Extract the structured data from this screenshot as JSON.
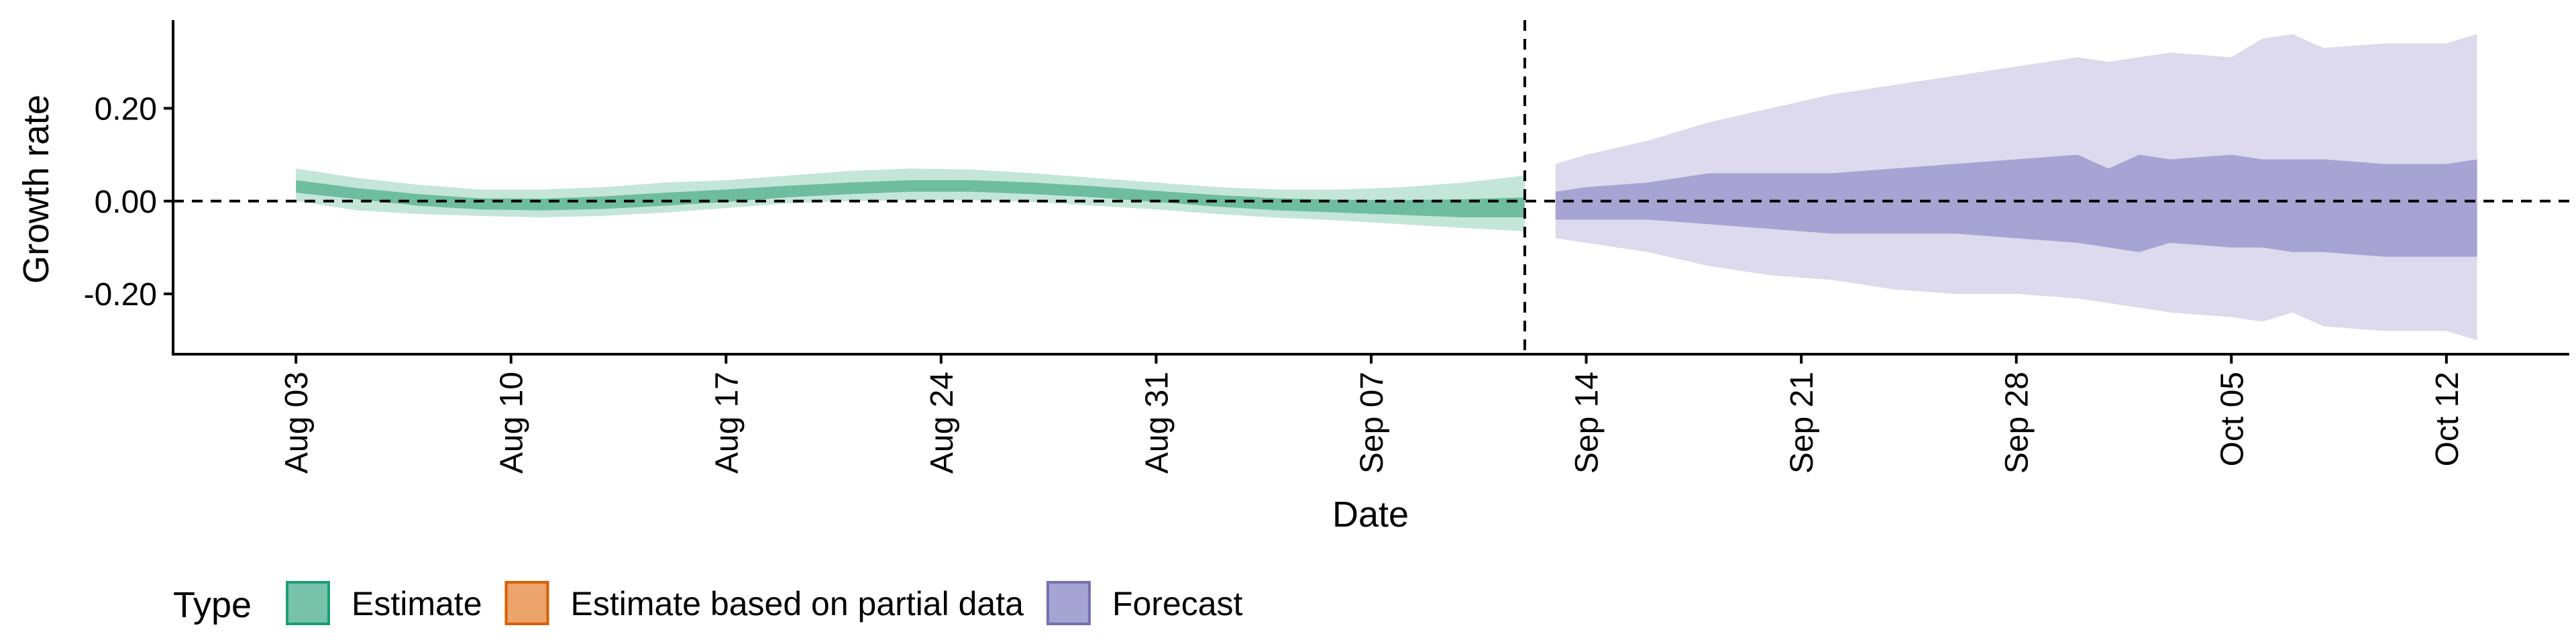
{
  "chart_data": {
    "type": "area",
    "xlabel": "Date",
    "ylabel": "Growth rate",
    "x_ticks": [
      "2020-08-03",
      "2020-08-10",
      "2020-08-17",
      "2020-08-24",
      "2020-08-31",
      "2020-09-07",
      "2020-09-14",
      "2020-09-21",
      "2020-09-28",
      "2020-10-05",
      "2020-10-12"
    ],
    "x_tick_labels": [
      "Aug 03",
      "Aug 10",
      "Aug 17",
      "Aug 24",
      "Aug 31",
      "Sep 07",
      "Sep 14",
      "Sep 21",
      "Sep 28",
      "Oct 05",
      "Oct 12"
    ],
    "y_ticks": [
      -0.2,
      0.0,
      0.2
    ],
    "y_tick_labels": [
      "-0.20",
      "0.00",
      "0.20"
    ],
    "xlim": [
      "2020-07-30",
      "2020-10-16"
    ],
    "ylim": [
      -0.33,
      0.39
    ],
    "reference_lines": {
      "horizontal_y": 0.0,
      "vertical_x": "2020-09-12"
    },
    "grid": false,
    "legend": {
      "title": "Type",
      "position": "bottom-left",
      "items": [
        {
          "label": "Estimate",
          "fill": "#77c2a8",
          "stroke": "#1b9e77"
        },
        {
          "label": "Estimate based on partial data",
          "fill": "#eba46b",
          "stroke": "#d95f02"
        },
        {
          "label": "Forecast",
          "fill": "#a7a4d3",
          "stroke": "#7570b3"
        }
      ]
    },
    "series": [
      {
        "name": "Estimate",
        "color_outer": "#c4e6da",
        "color_inner": "#6ebda0",
        "x": [
          "2020-08-03",
          "2020-08-05",
          "2020-08-07",
          "2020-08-09",
          "2020-08-11",
          "2020-08-13",
          "2020-08-15",
          "2020-08-17",
          "2020-08-19",
          "2020-08-21",
          "2020-08-23",
          "2020-08-25",
          "2020-08-27",
          "2020-08-29",
          "2020-08-31",
          "2020-09-02",
          "2020-09-04",
          "2020-09-06",
          "2020-09-08",
          "2020-09-10",
          "2020-09-12"
        ],
        "outer_upper": [
          0.07,
          0.05,
          0.035,
          0.025,
          0.025,
          0.03,
          0.04,
          0.045,
          0.055,
          0.065,
          0.07,
          0.068,
          0.06,
          0.05,
          0.04,
          0.03,
          0.025,
          0.025,
          0.03,
          0.04,
          0.055
        ],
        "inner_upper": [
          0.045,
          0.028,
          0.015,
          0.006,
          0.005,
          0.01,
          0.018,
          0.025,
          0.033,
          0.04,
          0.045,
          0.045,
          0.04,
          0.032,
          0.022,
          0.013,
          0.006,
          0.003,
          0.002,
          0.004,
          0.008
        ],
        "inner_lower": [
          0.018,
          0.004,
          -0.01,
          -0.018,
          -0.02,
          -0.017,
          -0.01,
          -0.002,
          0.008,
          0.015,
          0.02,
          0.02,
          0.015,
          0.008,
          -0.002,
          -0.012,
          -0.02,
          -0.025,
          -0.03,
          -0.035,
          -0.035
        ],
        "outer_lower": [
          0.0,
          -0.02,
          -0.028,
          -0.032,
          -0.035,
          -0.032,
          -0.025,
          -0.015,
          -0.005,
          0.0,
          0.002,
          0.002,
          -0.002,
          -0.01,
          -0.018,
          -0.028,
          -0.036,
          -0.042,
          -0.05,
          -0.058,
          -0.065
        ]
      },
      {
        "name": "Forecast",
        "color_outer": "#dcdaec",
        "color_inner": "#a7a4d3",
        "x": [
          "2020-09-13",
          "2020-09-14",
          "2020-09-16",
          "2020-09-18",
          "2020-09-20",
          "2020-09-22",
          "2020-09-24",
          "2020-09-26",
          "2020-09-28",
          "2020-09-30",
          "2020-10-01",
          "2020-10-02",
          "2020-10-03",
          "2020-10-05",
          "2020-10-06",
          "2020-10-07",
          "2020-10-08",
          "2020-10-10",
          "2020-10-12",
          "2020-10-13"
        ],
        "outer_upper": [
          0.08,
          0.1,
          0.13,
          0.17,
          0.2,
          0.23,
          0.25,
          0.27,
          0.29,
          0.31,
          0.3,
          0.31,
          0.32,
          0.31,
          0.35,
          0.36,
          0.33,
          0.34,
          0.34,
          0.36
        ],
        "inner_upper": [
          0.02,
          0.03,
          0.04,
          0.06,
          0.06,
          0.06,
          0.07,
          0.08,
          0.09,
          0.1,
          0.07,
          0.1,
          0.09,
          0.1,
          0.09,
          0.09,
          0.09,
          0.08,
          0.08,
          0.09
        ],
        "inner_lower": [
          -0.04,
          -0.04,
          -0.04,
          -0.05,
          -0.06,
          -0.07,
          -0.07,
          -0.07,
          -0.08,
          -0.09,
          -0.1,
          -0.11,
          -0.09,
          -0.1,
          -0.1,
          -0.11,
          -0.11,
          -0.12,
          -0.12,
          -0.12
        ],
        "outer_lower": [
          -0.08,
          -0.09,
          -0.11,
          -0.14,
          -0.16,
          -0.17,
          -0.19,
          -0.2,
          -0.2,
          -0.21,
          -0.22,
          -0.23,
          -0.24,
          -0.25,
          -0.26,
          -0.24,
          -0.27,
          -0.28,
          -0.28,
          -0.3
        ]
      }
    ]
  }
}
